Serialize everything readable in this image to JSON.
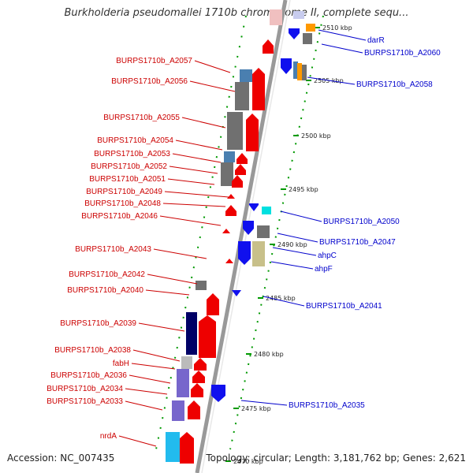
{
  "title": "Burkholderia pseudomallei 1710b chromosome II, complete sequ...",
  "footer": {
    "accession": "Accession: NC_007435",
    "stats": "Topology: circular; Length: 3,181,762 bp; Genes: 2,621"
  },
  "colors": {
    "label_left": "#cc0000",
    "label_right": "#0000cc",
    "backbone": "#999999",
    "ticks": "#009900",
    "gray": "#707070",
    "steel": "#4a7fb0",
    "red": "#ee0000",
    "blue": "#1010ee",
    "cyan": "#00e0e0",
    "navy": "#000066",
    "khaki": "#c8c08a",
    "slate": "#7766cc",
    "sky": "#22bbee",
    "orange": "#ff9900"
  },
  "ticks": [
    {
      "label": "2510 kbp"
    },
    {
      "label": "2505 kbp"
    },
    {
      "label": "2500 kbp"
    },
    {
      "label": "2495 kbp"
    },
    {
      "label": "2490 kbp"
    },
    {
      "label": "2485 kbp"
    },
    {
      "label": "2480 kbp"
    },
    {
      "label": "2475 kbp"
    },
    {
      "label": "2470 kbp"
    }
  ],
  "left_labels": [
    {
      "text": "BURPS1710b_A2057"
    },
    {
      "text": "BURPS1710b_A2056"
    },
    {
      "text": "BURPS1710b_A2055"
    },
    {
      "text": "BURPS1710b_A2054"
    },
    {
      "text": "BURPS1710b_A2053"
    },
    {
      "text": "BURPS1710b_A2052"
    },
    {
      "text": "BURPS1710b_A2051"
    },
    {
      "text": "BURPS1710b_A2049"
    },
    {
      "text": "BURPS1710b_A2048"
    },
    {
      "text": "BURPS1710b_A2046"
    },
    {
      "text": "BURPS1710b_A2043"
    },
    {
      "text": "BURPS1710b_A2042"
    },
    {
      "text": "BURPS1710b_A2040"
    },
    {
      "text": "BURPS1710b_A2039"
    },
    {
      "text": "BURPS1710b_A2038"
    },
    {
      "text": "fabH"
    },
    {
      "text": "BURPS1710b_A2036"
    },
    {
      "text": "BURPS1710b_A2034"
    },
    {
      "text": "BURPS1710b_A2033"
    },
    {
      "text": "nrdA"
    }
  ],
  "right_labels": [
    {
      "text": "darR"
    },
    {
      "text": "BURPS1710b_A2060"
    },
    {
      "text": "BURPS1710b_A2058"
    },
    {
      "text": "BURPS1710b_A2050"
    },
    {
      "text": "BURPS1710b_A2047"
    },
    {
      "text": "ahpC"
    },
    {
      "text": "ahpF"
    },
    {
      "text": "BURPS1710b_A2041"
    },
    {
      "text": "BURPS1710b_A2035"
    }
  ]
}
